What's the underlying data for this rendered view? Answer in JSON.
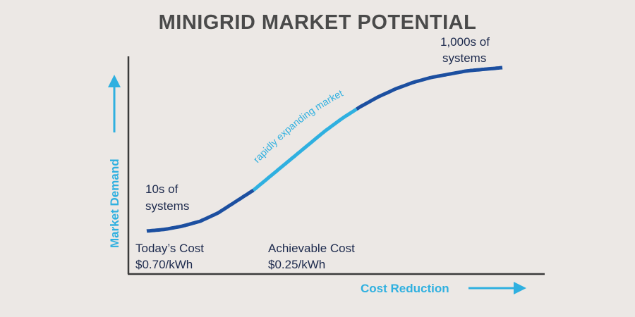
{
  "colors": {
    "background": "#ece8e5",
    "title": "#4a4a4a",
    "axis": "#3a3a3a",
    "curve_dark": "#1c4fa0",
    "curve_light": "#2fb0e0",
    "annotation": "#1d2a4d",
    "axis_label": "#2fb0e0"
  },
  "chart_data": {
    "type": "line",
    "title": "MINIGRID MARKET POTENTIAL",
    "xlabel": "Cost Reduction",
    "ylabel": "Market Demand",
    "grid": false,
    "series": [
      {
        "x": [
          0,
          0.05,
          0.1,
          0.15,
          0.2,
          0.25,
          0.3,
          0.35,
          0.4,
          0.45,
          0.5,
          0.55,
          0.6,
          0.65,
          0.7,
          0.75,
          0.8,
          0.85,
          0.9,
          0.95,
          1.0
        ],
        "y": [
          0.0,
          0.01,
          0.03,
          0.06,
          0.11,
          0.18,
          0.25,
          0.34,
          0.43,
          0.52,
          0.61,
          0.69,
          0.76,
          0.82,
          0.87,
          0.91,
          0.94,
          0.96,
          0.98,
          0.99,
          1.0
        ],
        "segments": [
          {
            "from_x": 0.0,
            "to_x": 0.3,
            "color": "dark"
          },
          {
            "from_x": 0.3,
            "to_x": 0.59,
            "color": "light",
            "label": "rapidly expanding market"
          },
          {
            "from_x": 0.59,
            "to_x": 1.0,
            "color": "dark"
          }
        ]
      }
    ],
    "annotations": {
      "low_demand": [
        "10s of",
        "systems"
      ],
      "high_demand": [
        "1,000s of",
        "systems"
      ],
      "todays_cost": [
        "Today’s Cost",
        "$0.70/kWh"
      ],
      "achievable_cost": [
        "Achievable Cost",
        "$0.25/kWh"
      ]
    }
  }
}
